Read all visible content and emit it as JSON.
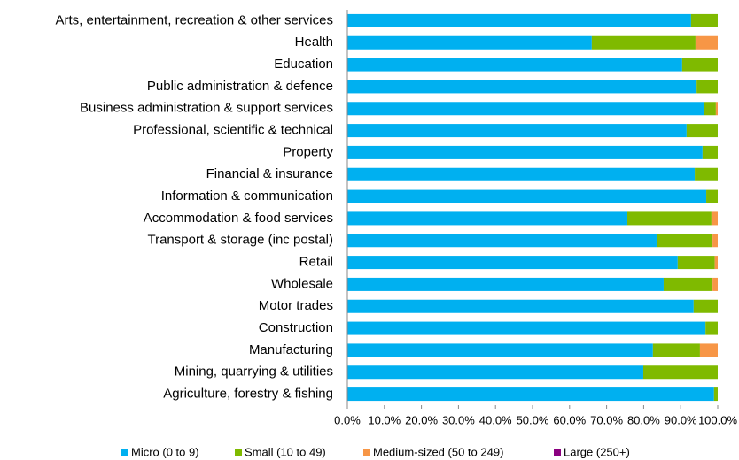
{
  "chart_data": {
    "type": "stacked-barh",
    "categories": [
      "Arts, entertainment, recreation & other services",
      "Health",
      "Education",
      "Public administration & defence",
      "Business administration & support services",
      "Professional, scientific & technical",
      "Property",
      "Financial & insurance",
      "Information & communication",
      "Accommodation & food services",
      "Transport & storage (inc postal)",
      "Retail",
      "Wholesale",
      "Motor trades",
      "Construction",
      "Manufacturing",
      "Mining, quarrying & utilities",
      "Agriculture, forestry & fishing"
    ],
    "series": [
      {
        "name": "Micro (0 to 9)",
        "color": "#00b0f0",
        "values": [
          92.8,
          66.0,
          90.4,
          94.3,
          96.4,
          91.6,
          95.9,
          93.8,
          96.9,
          75.6,
          83.5,
          89.2,
          85.4,
          93.5,
          96.7,
          82.5,
          79.9,
          99.0
        ]
      },
      {
        "name": "Small (10 to 49)",
        "color": "#7fba00",
        "values": [
          7.2,
          28.0,
          9.6,
          5.7,
          3.1,
          8.4,
          4.1,
          6.2,
          3.1,
          22.7,
          15.1,
          10.0,
          13.2,
          6.5,
          3.3,
          12.7,
          20.1,
          1.0
        ]
      },
      {
        "name": "Medium-sized (50 to 249)",
        "color": "#f79646",
        "values": [
          0,
          6.0,
          0,
          0,
          0.5,
          0,
          0,
          0,
          0,
          1.7,
          1.4,
          0.8,
          1.4,
          0,
          0,
          4.8,
          0,
          0
        ]
      },
      {
        "name": "Large (250+)",
        "color": "#8b0080",
        "values": [
          0,
          0,
          0,
          0,
          0,
          0,
          0,
          0,
          0,
          0,
          0,
          0,
          0,
          0,
          0,
          0,
          0,
          0
        ]
      }
    ],
    "xlim": [
      0,
      100
    ],
    "xticks": [
      {
        "value": 0,
        "label": "0.0%"
      },
      {
        "value": 10,
        "label": "10.0%"
      },
      {
        "value": 20,
        "label": "20.0%"
      },
      {
        "value": 30,
        "label": "30.0%"
      },
      {
        "value": 40,
        "label": "40.0%"
      },
      {
        "value": 50,
        "label": "50.0%"
      },
      {
        "value": 60,
        "label": "60.0%"
      },
      {
        "value": 70,
        "label": "70.0%"
      },
      {
        "value": 80,
        "label": "80.0%"
      },
      {
        "value": 90,
        "label": "90.0%"
      },
      {
        "value": 100,
        "label": "100.0%"
      }
    ],
    "legend": "bottom"
  }
}
